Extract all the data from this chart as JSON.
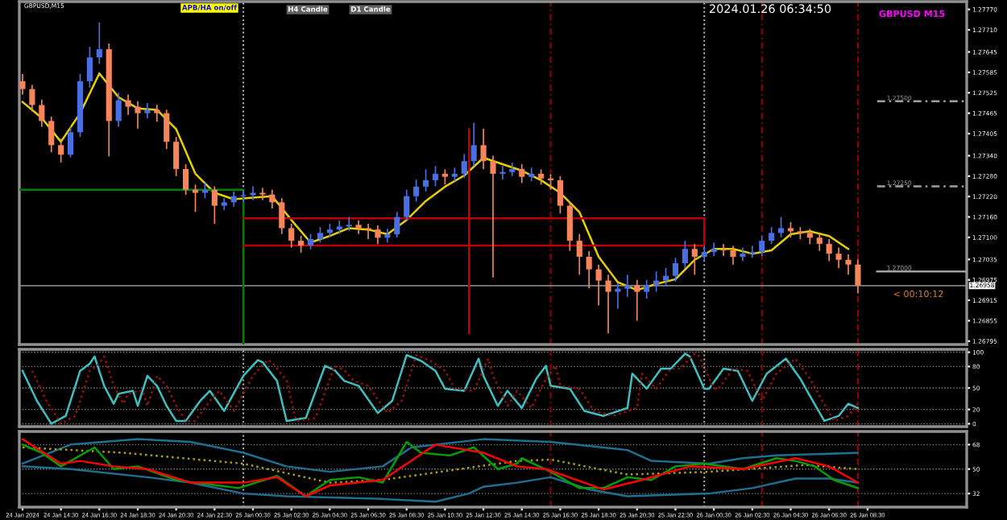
{
  "chart_data": [
    {
      "type": "candlestick",
      "title": "GBPUSD,M15",
      "tick_labels": "y",
      "grid": false,
      "xlim": [
        "2024-01-24T12:20",
        "2024-01-26T13:40"
      ],
      "ylim": [
        1.26785,
        1.27793
      ],
      "yticks": [
        {
          "value": 1.2777,
          "label": "1.27770"
        },
        {
          "value": 1.2771,
          "label": "1.27710"
        },
        {
          "value": 1.27645,
          "label": "1.27645"
        },
        {
          "value": 1.27585,
          "label": "1.27585"
        },
        {
          "value": 1.27525,
          "label": "1.27525"
        },
        {
          "value": 1.27465,
          "label": "1.27465"
        },
        {
          "value": 1.27405,
          "label": "1.27405"
        },
        {
          "value": 1.2734,
          "label": "1.27340"
        },
        {
          "value": 1.2728,
          "label": "1.27280"
        },
        {
          "value": 1.2722,
          "label": "1.27220"
        },
        {
          "value": 1.2716,
          "label": "1.27160"
        },
        {
          "value": 1.271,
          "label": "1.27100"
        },
        {
          "value": 1.27035,
          "label": "1.27035"
        },
        {
          "value": 1.26975,
          "label": "1.26975"
        },
        {
          "value": 1.26915,
          "label": "1.26915"
        },
        {
          "value": 1.26855,
          "label": "1.26855"
        },
        {
          "value": 1.26795,
          "label": "1.26795"
        }
      ],
      "x": [
        "2024-01-24T12:30",
        "2024-01-24T13:00",
        "2024-01-24T13:30",
        "2024-01-24T14:00",
        "2024-01-24T14:30",
        "2024-01-24T15:00",
        "2024-01-24T15:30",
        "2024-01-24T16:00",
        "2024-01-24T16:30",
        "2024-01-24T17:00",
        "2024-01-24T17:30",
        "2024-01-24T18:00",
        "2024-01-24T18:30",
        "2024-01-24T19:00",
        "2024-01-24T19:30",
        "2024-01-24T20:00",
        "2024-01-24T20:30",
        "2024-01-24T21:00",
        "2024-01-24T21:30",
        "2024-01-24T22:00",
        "2024-01-24T22:30",
        "2024-01-24T23:00",
        "2024-01-24T23:30",
        "2024-01-25T00:00",
        "2024-01-25T00:30",
        "2024-01-25T01:00",
        "2024-01-25T01:30",
        "2024-01-25T02:00",
        "2024-01-25T02:30",
        "2024-01-25T03:00",
        "2024-01-25T03:30",
        "2024-01-25T04:00",
        "2024-01-25T04:30",
        "2024-01-25T05:00",
        "2024-01-25T05:30",
        "2024-01-25T06:00",
        "2024-01-25T06:30",
        "2024-01-25T07:00",
        "2024-01-25T07:30",
        "2024-01-25T08:00",
        "2024-01-25T08:30",
        "2024-01-25T09:00",
        "2024-01-25T09:30",
        "2024-01-25T10:00",
        "2024-01-25T10:30",
        "2024-01-25T11:00",
        "2024-01-25T11:30",
        "2024-01-25T12:00",
        "2024-01-25T12:30",
        "2024-01-25T13:00",
        "2024-01-25T13:30",
        "2024-01-25T14:00",
        "2024-01-25T14:30",
        "2024-01-25T15:00",
        "2024-01-25T15:30",
        "2024-01-25T16:00",
        "2024-01-25T16:30",
        "2024-01-25T17:00",
        "2024-01-25T17:30",
        "2024-01-25T18:00",
        "2024-01-25T18:30",
        "2024-01-25T19:00",
        "2024-01-25T19:30",
        "2024-01-25T20:00",
        "2024-01-25T20:30",
        "2024-01-25T21:00",
        "2024-01-25T21:30",
        "2024-01-25T22:00",
        "2024-01-25T22:30",
        "2024-01-25T23:00",
        "2024-01-25T23:30",
        "2024-01-26T00:00",
        "2024-01-26T00:30",
        "2024-01-26T01:00",
        "2024-01-26T01:30",
        "2024-01-26T02:00",
        "2024-01-26T02:30",
        "2024-01-26T03:00",
        "2024-01-26T03:30",
        "2024-01-26T04:00",
        "2024-01-26T04:30",
        "2024-01-26T05:00",
        "2024-01-26T05:30",
        "2024-01-26T06:00",
        "2024-01-26T06:30",
        "2024-01-26T07:00",
        "2024-01-26T07:30",
        "2024-01-26T08:00"
      ],
      "ohlc": [
        [
          1.27559,
          1.2758,
          1.2752,
          1.27536
        ],
        [
          1.27536,
          1.27548,
          1.2747,
          1.27489
        ],
        [
          1.27489,
          1.27505,
          1.27425,
          1.27442
        ],
        [
          1.27442,
          1.27455,
          1.2735,
          1.27371
        ],
        [
          1.27371,
          1.2739,
          1.2732,
          1.27343
        ],
        [
          1.27343,
          1.27425,
          1.27335,
          1.27409
        ],
        [
          1.27409,
          1.2758,
          1.27395,
          1.27559
        ],
        [
          1.27559,
          1.2766,
          1.2754,
          1.27629
        ],
        [
          1.27629,
          1.27732,
          1.2761,
          1.27653
        ],
        [
          1.27653,
          1.2767,
          1.27338,
          1.27442
        ],
        [
          1.27442,
          1.27525,
          1.27425,
          1.27503
        ],
        [
          1.27503,
          1.2752,
          1.2746,
          1.27484
        ],
        [
          1.27484,
          1.275,
          1.2742,
          1.27465
        ],
        [
          1.27465,
          1.27495,
          1.2745,
          1.27475
        ],
        [
          1.27475,
          1.2749,
          1.2744,
          1.27465
        ],
        [
          1.27465,
          1.27475,
          1.2736,
          1.27381
        ],
        [
          1.27381,
          1.27395,
          1.2728,
          1.27301
        ],
        [
          1.27301,
          1.27315,
          1.27225,
          1.2724
        ],
        [
          1.2724,
          1.27255,
          1.27175,
          1.27231
        ],
        [
          1.27231,
          1.2726,
          1.27215,
          1.2724
        ],
        [
          1.2724,
          1.2725,
          1.2714,
          1.27193
        ],
        [
          1.27193,
          1.27215,
          1.2718,
          1.27203
        ],
        [
          1.27203,
          1.27235,
          1.2719,
          1.27221
        ],
        [
          1.27221,
          1.2724,
          1.27205,
          1.27224
        ],
        [
          1.27224,
          1.2725,
          1.2721,
          1.27231
        ],
        [
          1.27231,
          1.27245,
          1.2721,
          1.27226
        ],
        [
          1.27226,
          1.2724,
          1.27185,
          1.27203
        ],
        [
          1.27203,
          1.27215,
          1.2711,
          1.27127
        ],
        [
          1.27127,
          1.2714,
          1.2707,
          1.2709
        ],
        [
          1.2709,
          1.27105,
          1.27055,
          1.27076
        ],
        [
          1.27076,
          1.2711,
          1.27065,
          1.27095
        ],
        [
          1.27095,
          1.2713,
          1.27085,
          1.27113
        ],
        [
          1.27113,
          1.2714,
          1.271,
          1.27123
        ],
        [
          1.27123,
          1.2715,
          1.2711,
          1.27132
        ],
        [
          1.27132,
          1.2716,
          1.2712,
          1.27137
        ],
        [
          1.27137,
          1.2715,
          1.2711,
          1.27127
        ],
        [
          1.27127,
          1.2714,
          1.27095,
          1.27123
        ],
        [
          1.27123,
          1.27135,
          1.2708,
          1.27099
        ],
        [
          1.27099,
          1.27125,
          1.27085,
          1.27109
        ],
        [
          1.27109,
          1.27175,
          1.271,
          1.2716
        ],
        [
          1.2716,
          1.2724,
          1.2715,
          1.27221
        ],
        [
          1.27221,
          1.2727,
          1.27205,
          1.27249
        ],
        [
          1.27249,
          1.273,
          1.27235,
          1.27268
        ],
        [
          1.27268,
          1.2731,
          1.2725,
          1.27287
        ],
        [
          1.27287,
          1.273,
          1.27255,
          1.27278
        ],
        [
          1.27278,
          1.27305,
          1.27265,
          1.27287
        ],
        [
          1.27287,
          1.27345,
          1.27275,
          1.27324
        ],
        [
          1.27324,
          1.27437,
          1.2731,
          1.27371
        ],
        [
          1.27371,
          1.2742,
          1.273,
          1.27324
        ],
        [
          1.27324,
          1.2734,
          1.26982,
          1.27287
        ],
        [
          1.27287,
          1.2731,
          1.2727,
          1.27292
        ],
        [
          1.27292,
          1.2732,
          1.2728,
          1.27301
        ],
        [
          1.27301,
          1.27315,
          1.2726,
          1.27278
        ],
        [
          1.27278,
          1.27305,
          1.27265,
          1.27287
        ],
        [
          1.27287,
          1.273,
          1.27255,
          1.27273
        ],
        [
          1.27273,
          1.27285,
          1.2724,
          1.27268
        ],
        [
          1.27268,
          1.2728,
          1.2717,
          1.27193
        ],
        [
          1.27193,
          1.27205,
          1.2706,
          1.2709
        ],
        [
          1.2709,
          1.2711,
          1.2699,
          1.27043
        ],
        [
          1.27043,
          1.2706,
          1.2695,
          1.27006
        ],
        [
          1.27006,
          1.2702,
          1.269,
          1.26973
        ],
        [
          1.26973,
          1.2699,
          1.26818,
          1.2694
        ],
        [
          1.2694,
          1.26965,
          1.2689,
          1.26949
        ],
        [
          1.26949,
          1.2699,
          1.26925,
          1.26959
        ],
        [
          1.26959,
          1.26975,
          1.26855,
          1.2694
        ],
        [
          1.2694,
          1.26975,
          1.2692,
          1.26959
        ],
        [
          1.26959,
          1.27,
          1.2694,
          1.26973
        ],
        [
          1.26973,
          1.2701,
          1.26955,
          1.26987
        ],
        [
          1.26987,
          1.2704,
          1.2697,
          1.27024
        ],
        [
          1.27024,
          1.2709,
          1.2701,
          1.27066
        ],
        [
          1.27066,
          1.2708,
          1.2699,
          1.27043
        ],
        [
          1.27043,
          1.27075,
          1.2703,
          1.27057
        ],
        [
          1.27057,
          1.27085,
          1.27045,
          1.27066
        ],
        [
          1.27066,
          1.2708,
          1.27045,
          1.27062
        ],
        [
          1.27062,
          1.27075,
          1.2702,
          1.27043
        ],
        [
          1.27043,
          1.2707,
          1.2703,
          1.27052
        ],
        [
          1.27052,
          1.27075,
          1.2704,
          1.27057
        ],
        [
          1.27057,
          1.27105,
          1.27045,
          1.2709
        ],
        [
          1.2709,
          1.2713,
          1.2708,
          1.27113
        ],
        [
          1.27113,
          1.2716,
          1.271,
          1.27127
        ],
        [
          1.27127,
          1.27145,
          1.271,
          1.27118
        ],
        [
          1.27118,
          1.2713,
          1.27095,
          1.27113
        ],
        [
          1.27113,
          1.27125,
          1.2708,
          1.27099
        ],
        [
          1.27099,
          1.2711,
          1.2706,
          1.27081
        ],
        [
          1.27081,
          1.27095,
          1.2703,
          1.27052
        ],
        [
          1.27052,
          1.2707,
          1.2701,
          1.27034
        ],
        [
          1.27034,
          1.2705,
          1.2699,
          1.2702
        ],
        [
          1.2702,
          1.27035,
          1.26935,
          1.26959
        ]
      ],
      "colors": [
        "#f5865c",
        "#f5865c",
        "#f5865c",
        "#f5865c",
        "#f5865c",
        "#4a6fe3",
        "#4a6fe3",
        "#4a6fe3",
        "#4a6fe3",
        "#f5865c",
        "#4a6fe3",
        "#f5865c",
        "#f5865c",
        "#4a6fe3",
        "#f5865c",
        "#f5865c",
        "#f5865c",
        "#f5865c",
        "#f5865c",
        "#4a6fe3",
        "#f5865c",
        "#4a6fe3",
        "#4a6fe3",
        "#4a6fe3",
        "#4a6fe3",
        "#f5865c",
        "#f5865c",
        "#f5865c",
        "#f5865c",
        "#f5865c",
        "#4a6fe3",
        "#4a6fe3",
        "#4a6fe3",
        "#4a6fe3",
        "#4a6fe3",
        "#f5865c",
        "#f5865c",
        "#f5865c",
        "#4a6fe3",
        "#4a6fe3",
        "#4a6fe3",
        "#4a6fe3",
        "#4a6fe3",
        "#4a6fe3",
        "#f5865c",
        "#4a6fe3",
        "#4a6fe3",
        "#4a6fe3",
        "#f5865c",
        "#f5865c",
        "#4a6fe3",
        "#4a6fe3",
        "#f5865c",
        "#4a6fe3",
        "#f5865c",
        "#f5865c",
        "#f5865c",
        "#f5865c",
        "#f5865c",
        "#f5865c",
        "#f5865c",
        "#f5865c",
        "#4a6fe3",
        "#4a6fe3",
        "#f5865c",
        "#4a6fe3",
        "#4a6fe3",
        "#4a6fe3",
        "#4a6fe3",
        "#4a6fe3",
        "#f5865c",
        "#4a6fe3",
        "#4a6fe3",
        "#f5865c",
        "#f5865c",
        "#4a6fe3",
        "#4a6fe3",
        "#4a6fe3",
        "#4a6fe3",
        "#4a6fe3",
        "#f5865c",
        "#f5865c",
        "#f5865c",
        "#f5865c",
        "#f5865c",
        "#f5865c",
        "#f5865c",
        "#f5865c"
      ],
      "series": [
        {
          "type": "line",
          "color": "#e8d000",
          "x": [
            "2024-01-24T12:30",
            "2024-01-24T13:30",
            "2024-01-24T14:30",
            "2024-01-24T15:30",
            "2024-01-24T16:30",
            "2024-01-24T17:30",
            "2024-01-24T18:30",
            "2024-01-24T19:30",
            "2024-01-24T20:30",
            "2024-01-24T21:30",
            "2024-01-24T22:30",
            "2024-01-24T23:30",
            "2024-01-25T00:30",
            "2024-01-25T01:30",
            "2024-01-25T02:30",
            "2024-01-25T03:30",
            "2024-01-25T04:30",
            "2024-01-25T05:30",
            "2024-01-25T06:30",
            "2024-01-25T07:30",
            "2024-01-25T08:30",
            "2024-01-25T09:30",
            "2024-01-25T10:30",
            "2024-01-25T11:30",
            "2024-01-25T12:30",
            "2024-01-25T13:30",
            "2024-01-25T14:30",
            "2024-01-25T15:30",
            "2024-01-25T16:30",
            "2024-01-25T17:30",
            "2024-01-25T18:30",
            "2024-01-25T19:30",
            "2024-01-25T20:30",
            "2024-01-25T21:30",
            "2024-01-25T22:30",
            "2024-01-25T23:30",
            "2024-01-26T00:30",
            "2024-01-26T01:30",
            "2024-01-26T02:30",
            "2024-01-26T03:30",
            "2024-01-26T04:30",
            "2024-01-26T05:30",
            "2024-01-26T06:30",
            "2024-01-26T07:30"
          ],
          "values": [
            1.27498,
            1.27451,
            1.27381,
            1.27465,
            1.27582,
            1.27512,
            1.27479,
            1.27475,
            1.27418,
            1.27287,
            1.27231,
            1.27212,
            1.27217,
            1.27221,
            1.27151,
            1.27085,
            1.27104,
            1.27127,
            1.27123,
            1.27109,
            1.27151,
            1.27207,
            1.27249,
            1.27282,
            1.27334,
            1.27315,
            1.27296,
            1.27268,
            1.27231,
            1.27174,
            1.27043,
            1.26968,
            1.26945,
            1.26963,
            1.26977,
            1.27034,
            1.27066,
            1.27066,
            1.27052,
            1.27062,
            1.27109,
            1.27118,
            1.27104,
            1.27066
          ]
        },
        {
          "type": "line",
          "color": "#008000",
          "x": [
            "2024-01-24T12:20",
            "2024-01-25T00:00",
            "2024-01-25T00:00"
          ],
          "values": [
            1.2724,
            1.2724,
            1.26785
          ]
        },
        {
          "type": "line",
          "color": "#c00000",
          "x": [
            "2024-01-25T00:00",
            "2024-01-26T00:00",
            "2024-01-26T00:00",
            "2024-01-25T00:00"
          ],
          "values": [
            1.27156,
            1.27156,
            1.27076,
            1.27076
          ]
        },
        {
          "type": "line",
          "color": "#c00000",
          "x": [
            "2024-01-25T11:45",
            "2024-01-25T11:45"
          ],
          "values": [
            1.27418,
            1.26818
          ]
        },
        {
          "type": "line",
          "color": "#a0a0a0",
          "line_style": "dashed",
          "x": [
            "2024-01-26T09:00",
            "2024-01-26T13:40"
          ],
          "values": [
            1.275,
            1.275
          ]
        },
        {
          "type": "line",
          "color": "#a0a0a0",
          "line_style": "dashed",
          "x": [
            "2024-01-26T09:00",
            "2024-01-26T13:40"
          ],
          "values": [
            1.2725,
            1.2725
          ]
        },
        {
          "type": "line",
          "color": "#a0a0a0",
          "x": [
            "2024-01-26T09:00",
            "2024-01-26T13:40"
          ],
          "values": [
            1.27,
            1.27
          ]
        }
      ],
      "ref_lines": [
        {
          "axis": "x",
          "value": "2024-01-25T00:00",
          "color": "#c0c0c0",
          "line_style": "dotted"
        },
        {
          "axis": "x",
          "value": "2024-01-26T00:00",
          "color": "#c0c0c0",
          "line_style": "dotted"
        },
        {
          "axis": "x",
          "value": "2024-01-25T16:00",
          "color": "#a00000",
          "line_style": "dashed"
        },
        {
          "axis": "x",
          "value": "2024-01-26T03:00",
          "color": "#a00000",
          "line_style": "dashed"
        },
        {
          "axis": "x",
          "value": "2024-01-26T08:00",
          "color": "#a00000",
          "line_style": "dashed"
        },
        {
          "axis": "y",
          "value": 1.26958,
          "label": "1.26958",
          "color": "#808080"
        }
      ],
      "annotations": [
        "APB/HA on/off",
        "H4 Candle",
        "D1 Candle",
        "2024.01.26 06:34:50",
        "GBPUSD M15",
        "< 00:10:12",
        {
          "text": "1.27500",
          "x": "2024-01-26T09:30",
          "y": 1.275
        },
        {
          "text": "1.27250",
          "x": "2024-01-26T09:30",
          "y": 1.2725
        },
        {
          "text": "1.27000",
          "x": "2024-01-26T09:30",
          "y": 1.27
        }
      ]
    },
    {
      "type": "line",
      "tick_labels": "y",
      "grid": "y",
      "xlim": [
        "2024-01-24T12:20",
        "2024-01-26T13:40"
      ],
      "ylim": [
        -4,
        104
      ],
      "yticks": [
        0,
        20,
        50,
        80,
        100
      ],
      "series": [
        {
          "color": "#3fc0c0",
          "x": [
            "2024-01-24T12:30",
            "2024-01-24T13:15",
            "2024-01-24T14:00",
            "2024-01-24T14:45",
            "2024-01-24T15:30",
            "2024-01-24T16:00",
            "2024-01-24T16:15",
            "2024-01-24T16:45",
            "2024-01-24T17:15",
            "2024-01-24T17:30",
            "2024-01-24T18:15",
            "2024-01-24T18:30",
            "2024-01-24T19:00",
            "2024-01-24T19:30",
            "2024-01-24T20:00",
            "2024-01-24T20:30",
            "2024-01-24T21:00",
            "2024-01-24T21:45",
            "2024-01-24T22:15",
            "2024-01-24T23:00",
            "2024-01-25T00:00",
            "2024-01-25T00:45",
            "2024-01-25T01:00",
            "2024-01-25T01:45",
            "2024-01-25T02:15",
            "2024-01-25T03:15",
            "2024-01-25T04:15",
            "2024-01-25T04:45",
            "2024-01-25T05:15",
            "2024-01-25T06:00",
            "2024-01-25T07:00",
            "2024-01-25T07:45",
            "2024-01-25T08:30",
            "2024-01-25T09:15",
            "2024-01-25T10:00",
            "2024-01-25T10:30",
            "2024-01-25T11:30",
            "2024-01-25T12:15",
            "2024-01-25T12:30",
            "2024-01-25T13:15",
            "2024-01-25T13:45",
            "2024-01-25T14:30",
            "2024-01-25T15:15",
            "2024-01-25T15:45",
            "2024-01-25T16:00",
            "2024-01-25T17:00",
            "2024-01-25T17:45",
            "2024-01-25T18:45",
            "2024-01-25T20:00",
            "2024-01-25T20:15",
            "2024-01-25T21:00",
            "2024-01-25T21:45",
            "2024-01-25T22:15",
            "2024-01-25T23:00",
            "2024-01-25T23:15",
            "2024-01-26T00:00",
            "2024-01-26T00:15",
            "2024-01-26T01:00",
            "2024-01-26T01:45",
            "2024-01-26T02:30",
            "2024-01-26T03:15",
            "2024-01-26T04:15",
            "2024-01-26T05:00",
            "2024-01-26T05:30",
            "2024-01-26T06:15",
            "2024-01-26T07:00",
            "2024-01-26T07:30",
            "2024-01-26T08:00"
          ],
          "values": [
            74,
            32,
            0,
            11,
            74,
            84,
            94,
            53,
            28,
            42,
            46,
            25,
            67,
            53,
            25,
            4,
            4,
            32,
            46,
            18,
            67,
            89,
            86,
            60,
            4,
            8,
            81,
            75,
            60,
            53,
            15,
            32,
            96,
            88,
            74,
            49,
            46,
            91,
            67,
            25,
            46,
            22,
            63,
            81,
            53,
            49,
            18,
            11,
            22,
            70,
            49,
            77,
            77,
            98,
            94,
            49,
            49,
            77,
            74,
            32,
            70,
            91,
            63,
            39,
            4,
            11,
            28,
            22
          ]
        },
        {
          "color": "#a01010",
          "line_style": "dotted",
          "x": [
            "2024-01-24T13:00",
            "2024-01-24T13:45",
            "2024-01-24T14:30",
            "2024-01-24T15:15",
            "2024-01-24T16:00",
            "2024-01-24T16:30",
            "2024-01-24T16:45",
            "2024-01-24T17:15",
            "2024-01-24T17:45",
            "2024-01-24T18:00",
            "2024-01-24T18:45",
            "2024-01-24T19:00",
            "2024-01-24T19:30",
            "2024-01-24T20:00",
            "2024-01-24T20:30",
            "2024-01-24T21:00",
            "2024-01-24T21:30",
            "2024-01-24T22:15",
            "2024-01-24T22:45",
            "2024-01-24T23:30",
            "2024-01-25T00:30",
            "2024-01-25T01:15",
            "2024-01-25T01:30",
            "2024-01-25T02:15",
            "2024-01-25T02:45",
            "2024-01-25T03:45",
            "2024-01-25T04:45",
            "2024-01-25T05:15",
            "2024-01-25T05:45",
            "2024-01-25T06:30",
            "2024-01-25T07:30",
            "2024-01-25T08:15",
            "2024-01-25T09:00",
            "2024-01-25T09:45",
            "2024-01-25T10:30",
            "2024-01-25T11:00",
            "2024-01-25T12:00",
            "2024-01-25T12:45",
            "2024-01-25T13:00",
            "2024-01-25T13:45",
            "2024-01-25T14:15",
            "2024-01-25T15:00",
            "2024-01-25T15:45",
            "2024-01-25T16:15",
            "2024-01-25T16:30",
            "2024-01-25T17:30",
            "2024-01-25T18:15",
            "2024-01-25T19:15",
            "2024-01-25T20:30",
            "2024-01-25T20:45",
            "2024-01-25T21:30",
            "2024-01-25T22:15",
            "2024-01-25T22:45",
            "2024-01-25T23:30",
            "2024-01-25T23:45",
            "2024-01-26T00:30",
            "2024-01-26T00:45",
            "2024-01-26T01:30",
            "2024-01-26T02:15",
            "2024-01-26T03:00",
            "2024-01-26T03:45",
            "2024-01-26T04:45",
            "2024-01-26T05:30",
            "2024-01-26T06:00",
            "2024-01-26T06:45",
            "2024-01-26T07:30",
            "2024-01-26T08:00"
          ],
          "values": [
            74,
            32,
            0,
            11,
            74,
            84,
            94,
            53,
            28,
            42,
            46,
            25,
            67,
            53,
            25,
            4,
            4,
            32,
            46,
            18,
            67,
            89,
            86,
            60,
            4,
            8,
            81,
            75,
            60,
            53,
            15,
            32,
            96,
            88,
            74,
            49,
            46,
            91,
            67,
            25,
            46,
            22,
            63,
            81,
            53,
            49,
            18,
            11,
            22,
            70,
            49,
            77,
            77,
            98,
            94,
            49,
            49,
            77,
            74,
            32,
            70,
            91,
            63,
            39,
            4,
            11,
            28
          ]
        }
      ],
      "ref_lines": [
        {
          "axis": "x",
          "value": "2024-01-25T00:00",
          "color": "#c0c0c0",
          "line_style": "dotted"
        },
        {
          "axis": "x",
          "value": "2024-01-26T00:00",
          "color": "#c0c0c0",
          "line_style": "dotted"
        },
        {
          "axis": "x",
          "value": "2024-01-25T16:00",
          "color": "#a00000",
          "line_style": "dashed"
        },
        {
          "axis": "x",
          "value": "2024-01-26T03:00",
          "color": "#a00000",
          "line_style": "dashed"
        },
        {
          "axis": "x",
          "value": "2024-01-26T08:00",
          "color": "#a00000",
          "line_style": "dashed"
        }
      ]
    },
    {
      "type": "line",
      "grid": "y",
      "xlim": [
        "2024-01-24T12:20",
        "2024-01-26T13:40"
      ],
      "ylim": [
        22,
        77.7
      ],
      "yticks": [
        32,
        50,
        68
      ],
      "xticks": [
        {
          "value": "2024-01-24T12:30",
          "label": "24 Jan 2024"
        },
        {
          "value": "2024-01-24T14:30",
          "label": "24 Jan 14:30"
        },
        {
          "value": "2024-01-24T16:30",
          "label": "24 Jan 16:30"
        },
        {
          "value": "2024-01-24T18:30",
          "label": "24 Jan 18:30"
        },
        {
          "value": "2024-01-24T20:30",
          "label": "24 Jan 20:30"
        },
        {
          "value": "2024-01-24T22:30",
          "label": "24 Jan 22:30"
        },
        {
          "value": "2024-01-25T00:30",
          "label": "25 Jan 00:30"
        },
        {
          "value": "2024-01-25T02:30",
          "label": "25 Jan 02:30"
        },
        {
          "value": "2024-01-25T04:30",
          "label": "25 Jan 04:30"
        },
        {
          "value": "2024-01-25T06:30",
          "label": "25 Jan 06:30"
        },
        {
          "value": "2024-01-25T08:30",
          "label": "25 Jan 08:30"
        },
        {
          "value": "2024-01-25T10:30",
          "label": "25 Jan 10:30"
        },
        {
          "value": "2024-01-25T12:30",
          "label": "25 Jan 12:30"
        },
        {
          "value": "2024-01-25T14:30",
          "label": "25 Jan 14:30"
        },
        {
          "value": "2024-01-25T16:30",
          "label": "25 Jan 16:30"
        },
        {
          "value": "2024-01-25T18:30",
          "label": "25 Jan 18:30"
        },
        {
          "value": "2024-01-25T20:30",
          "label": "25 Jan 20:30"
        },
        {
          "value": "2024-01-25T22:30",
          "label": "25 Jan 22:30"
        },
        {
          "value": "2024-01-26T00:30",
          "label": "26 Jan 00:30"
        },
        {
          "value": "2024-01-26T02:30",
          "label": "26 Jan 02:30"
        },
        {
          "value": "2024-01-26T04:30",
          "label": "26 Jan 04:30"
        },
        {
          "value": "2024-01-26T06:30",
          "label": "26 Jan 06:30"
        },
        {
          "value": "2024-01-26T08:30",
          "label": "26 Jan 08:30"
        }
      ],
      "series": [
        {
          "color": "#1f6f90",
          "x": [
            "2024-01-24T12:30",
            "2024-01-24T15:00",
            "2024-01-24T18:30",
            "2024-01-24T21:15",
            "2024-01-25T00:00",
            "2024-01-25T02:15",
            "2024-01-25T04:30",
            "2024-01-25T07:15",
            "2024-01-25T08:45",
            "2024-01-25T12:30",
            "2024-01-25T16:00",
            "2024-01-25T20:00",
            "2024-01-25T21:15",
            "2024-01-26T00:15",
            "2024-01-26T02:00",
            "2024-01-26T03:45",
            "2024-01-26T08:00"
          ],
          "values": [
            54,
            68,
            72,
            70,
            62,
            52,
            48,
            52,
            66,
            72,
            70,
            64,
            56,
            54,
            58,
            60,
            62
          ]
        },
        {
          "color": "#1f6f90",
          "x": [
            "2024-01-24T12:30",
            "2024-01-24T15:00",
            "2024-01-24T19:00",
            "2024-01-24T21:15",
            "2024-01-25T00:00",
            "2024-01-25T02:15",
            "2024-01-25T07:15",
            "2024-01-25T10:00",
            "2024-01-25T11:45",
            "2024-01-25T12:30",
            "2024-01-25T14:15",
            "2024-01-25T16:00",
            "2024-01-25T18:00",
            "2024-01-25T20:00",
            "2024-01-26T00:15",
            "2024-01-26T02:30",
            "2024-01-26T04:45",
            "2024-01-26T06:30",
            "2024-01-26T08:00"
          ],
          "values": [
            52,
            50,
            44,
            40,
            32,
            30,
            28,
            26,
            32,
            37,
            40,
            44,
            35,
            30,
            32,
            36,
            43,
            43,
            40
          ]
        },
        {
          "color": "#b0a000",
          "line_style": "dotted",
          "x": [
            "2024-01-24T12:30",
            "2024-01-24T17:45",
            "2024-01-25T00:00",
            "2024-01-25T04:30",
            "2024-01-25T07:15",
            "2024-01-25T11:15",
            "2024-01-25T14:15",
            "2024-01-25T16:00",
            "2024-01-25T20:00",
            "2024-01-26T00:15",
            "2024-01-26T05:15",
            "2024-01-26T08:00"
          ],
          "values": [
            66,
            62,
            54,
            40,
            42,
            50,
            56,
            57,
            46,
            48,
            53,
            50
          ]
        },
        {
          "color": "#00a000",
          "x": [
            "2024-01-24T12:30",
            "2024-01-24T13:30",
            "2024-01-24T14:30",
            "2024-01-24T16:15",
            "2024-01-24T17:15",
            "2024-01-24T18:30",
            "2024-01-24T20:30",
            "2024-01-24T21:30",
            "2024-01-24T23:45",
            "2024-01-25T01:45",
            "2024-01-25T03:15",
            "2024-01-25T04:30",
            "2024-01-25T06:00",
            "2024-01-25T07:15",
            "2024-01-25T08:30",
            "2024-01-25T09:15",
            "2024-01-25T10:45",
            "2024-01-25T12:00",
            "2024-01-25T13:15",
            "2024-01-25T14:15",
            "2024-01-25T14:30",
            "2024-01-25T16:00",
            "2024-01-25T17:30",
            "2024-01-25T18:45",
            "2024-01-25T20:00",
            "2024-01-25T21:15",
            "2024-01-25T22:30",
            "2024-01-26T00:00",
            "2024-01-26T02:00",
            "2024-01-26T03:45",
            "2024-01-26T04:45",
            "2024-01-26T05:45",
            "2024-01-26T06:45",
            "2024-01-26T08:00"
          ],
          "values": [
            68,
            62,
            52,
            66,
            50,
            52,
            42,
            40,
            36,
            45,
            30,
            42,
            44,
            40,
            70,
            62,
            60,
            66,
            50,
            54,
            58,
            48,
            36,
            36,
            44,
            42,
            52,
            54,
            50,
            58,
            56,
            52,
            42,
            36
          ]
        },
        {
          "color": "#ff0000",
          "x": [
            "2024-01-24T12:30",
            "2024-01-24T14:30",
            "2024-01-24T15:30",
            "2024-01-24T17:15",
            "2024-01-24T19:00",
            "2024-01-24T21:15",
            "2024-01-25T00:00",
            "2024-01-25T01:45",
            "2024-01-25T03:15",
            "2024-01-25T04:30",
            "2024-01-25T07:15",
            "2024-01-25T10:00",
            "2024-01-25T12:30",
            "2024-01-25T14:15",
            "2024-01-25T15:45",
            "2024-01-25T18:45",
            "2024-01-25T20:45",
            "2024-01-25T23:15",
            "2024-01-26T02:00",
            "2024-01-26T04:45",
            "2024-01-26T06:30",
            "2024-01-26T08:00"
          ],
          "values": [
            72,
            54,
            56,
            52,
            50,
            40,
            40,
            44,
            30,
            38,
            42,
            68,
            62,
            52,
            50,
            35,
            42,
            52,
            50,
            58,
            52,
            40
          ]
        }
      ],
      "ref_lines": [
        {
          "axis": "x",
          "value": "2024-01-25T00:00",
          "color": "#c0c0c0",
          "line_style": "dotted"
        },
        {
          "axis": "x",
          "value": "2024-01-26T00:00",
          "color": "#c0c0c0",
          "line_style": "dotted"
        },
        {
          "axis": "x",
          "value": "2024-01-25T16:00",
          "color": "#a00000",
          "line_style": "dashed"
        },
        {
          "axis": "x",
          "value": "2024-01-26T03:00",
          "color": "#a00000",
          "line_style": "dashed"
        },
        {
          "axis": "x",
          "value": "2024-01-26T08:00",
          "color": "#a00000",
          "line_style": "dashed"
        }
      ]
    }
  ]
}
